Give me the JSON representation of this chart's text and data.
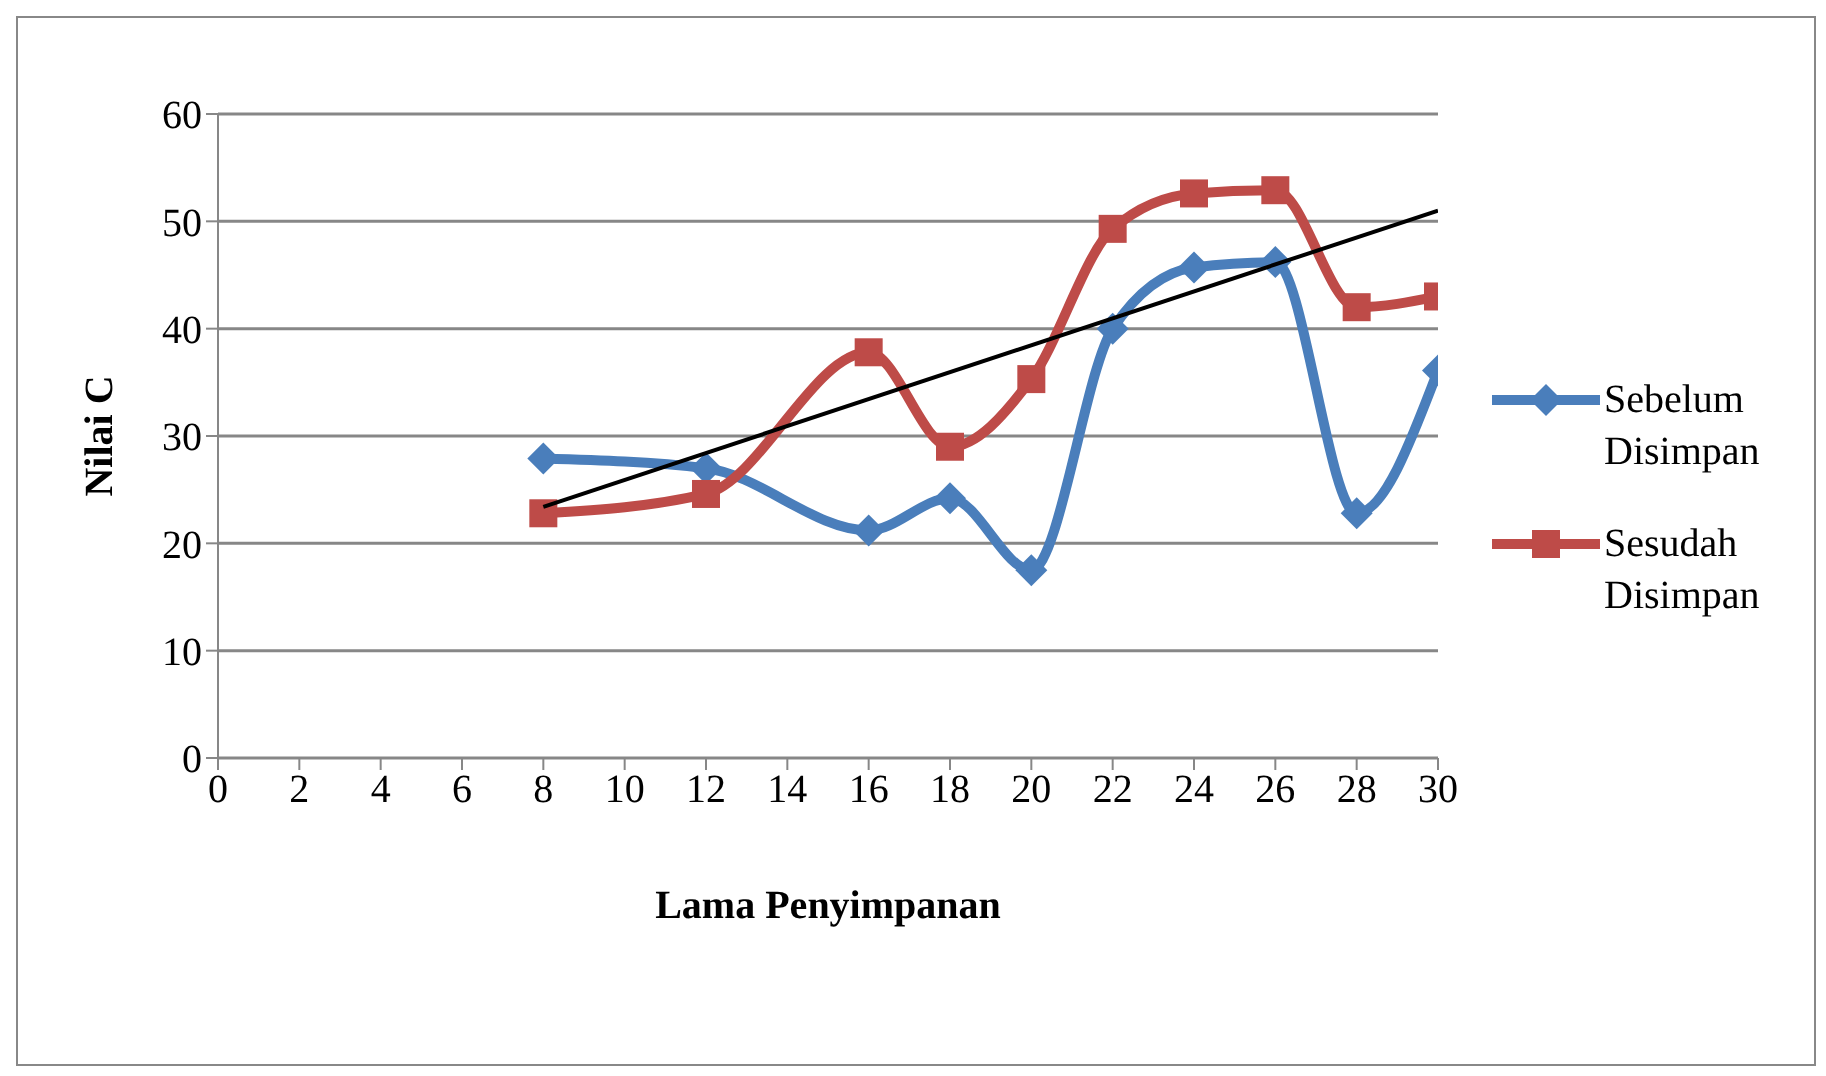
{
  "chart_data": {
    "type": "line",
    "xlabel": "Lama Penyimpanan",
    "ylabel": "Nilai C",
    "x": [
      8,
      12,
      16,
      18,
      20,
      22,
      24,
      26,
      28,
      30
    ],
    "series": [
      {
        "name": "Sebelum Disimpan",
        "color": "#4a7ebb",
        "marker": "diamond",
        "values": [
          27.9,
          27.0,
          21.2,
          24.2,
          17.5,
          40.0,
          45.7,
          46.2,
          22.8,
          36.1
        ]
      },
      {
        "name": "Sesudah Disimpan",
        "color": "#be4b48",
        "marker": "square",
        "values": [
          22.8,
          24.6,
          37.8,
          29.0,
          35.3,
          49.3,
          52.6,
          52.9,
          42.0,
          43.0
        ]
      },
      {
        "type": "line",
        "color": "#000000",
        "marker": "none",
        "x": [
          8,
          30
        ],
        "values": [
          23.4,
          51.0
        ]
      }
    ],
    "xlim": [
      0,
      30
    ],
    "xticks": [
      0,
      2,
      4,
      6,
      8,
      10,
      12,
      14,
      16,
      18,
      20,
      22,
      24,
      26,
      28,
      30
    ],
    "ylim": [
      0,
      60
    ],
    "yticks": [
      0,
      10,
      20,
      30,
      40,
      50,
      60
    ],
    "grid": "y",
    "legend": "right",
    "line_style": "solid"
  }
}
